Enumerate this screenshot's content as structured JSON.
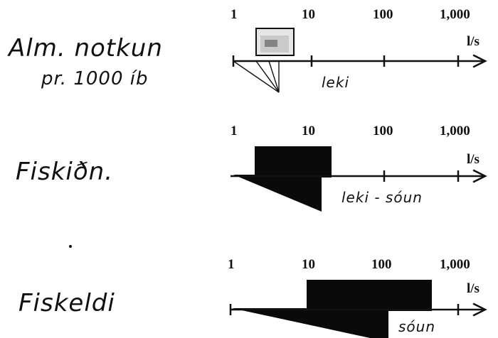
{
  "unit": "l/s",
  "ticks": [
    "1",
    "10",
    "100",
    "1,000"
  ],
  "rows": [
    {
      "label": "Alm. notkun",
      "sublabel": "pr. 1000 íb",
      "annotation": "leki",
      "range_low": 2,
      "range_high": 4.5
    },
    {
      "label": "Fiskiðn.",
      "sublabel": "",
      "annotation": "leki - sóun",
      "range_low": 2,
      "range_high": 20
    },
    {
      "label": "Fiskeldi",
      "sublabel": "",
      "annotation": "sóun",
      "range_low": 10,
      "range_high": 500
    }
  ]
}
